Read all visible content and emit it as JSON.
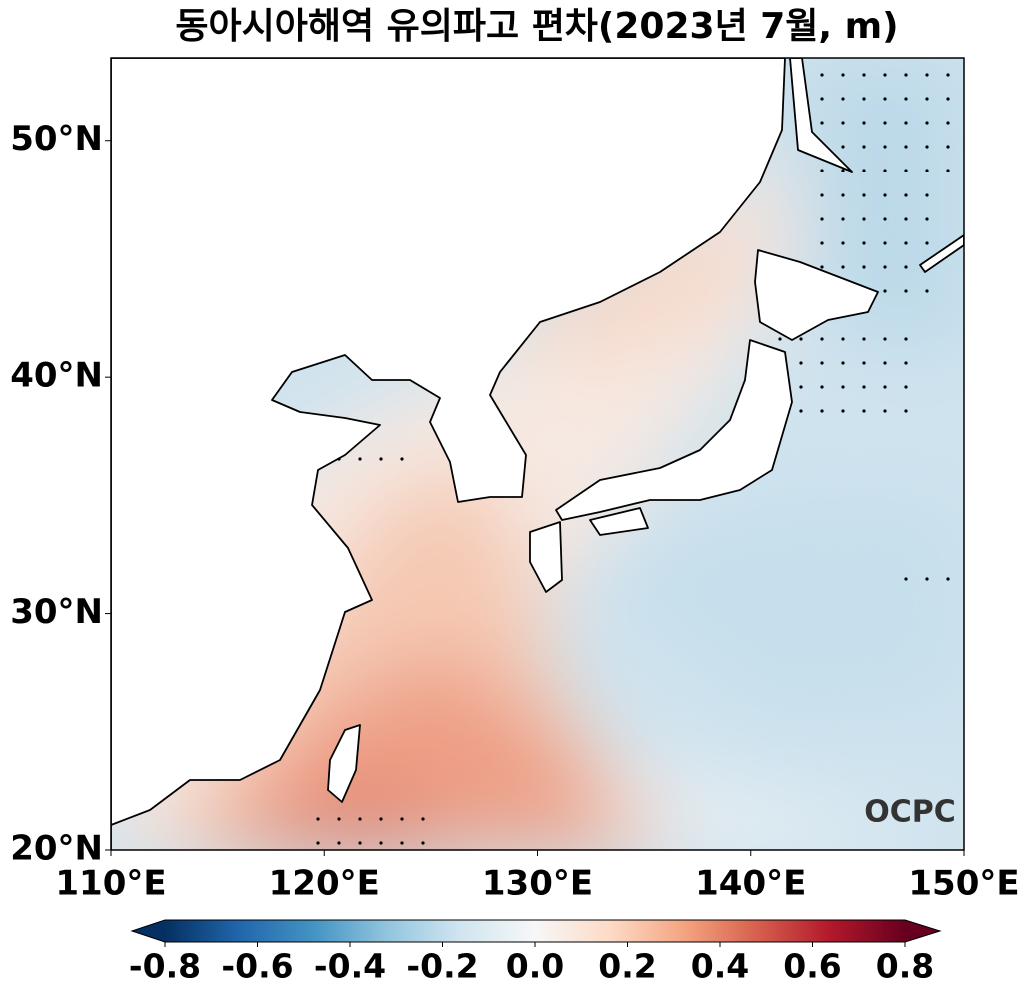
{
  "map": {
    "title": "동아시아해역 유의파고 편차(2023년 7월, m)",
    "xlim": [
      110,
      150
    ],
    "ylim": [
      20,
      53.5
    ],
    "xticks": [
      {
        "value": 110,
        "label": "110°E"
      },
      {
        "value": 120,
        "label": "120°E"
      },
      {
        "value": 130,
        "label": "130°E"
      },
      {
        "value": 140,
        "label": "140°E"
      },
      {
        "value": 150,
        "label": "150°E"
      }
    ],
    "yticks": [
      {
        "value": 20,
        "label": "20°N"
      },
      {
        "value": 30,
        "label": "30°N"
      },
      {
        "value": 40,
        "label": "40°N"
      },
      {
        "value": 50,
        "label": "50°N"
      }
    ],
    "colorbar": {
      "lim": [
        -0.8,
        0.8
      ],
      "ticks": [
        -0.8,
        -0.6,
        -0.4,
        -0.2,
        {
          "value": 0,
          "label": "0.0"
        },
        0.2,
        0.4,
        0.6,
        0.8
      ],
      "colors": [
        "#053061",
        "#2166ac",
        "#4393c3",
        "#92c5de",
        "#d1e5f0",
        "#f7f7f7",
        "#fddbc7",
        "#f4a582",
        "#d6604d",
        "#b2182b",
        "#67001f"
      ]
    },
    "logo": "OCPC"
  }
}
